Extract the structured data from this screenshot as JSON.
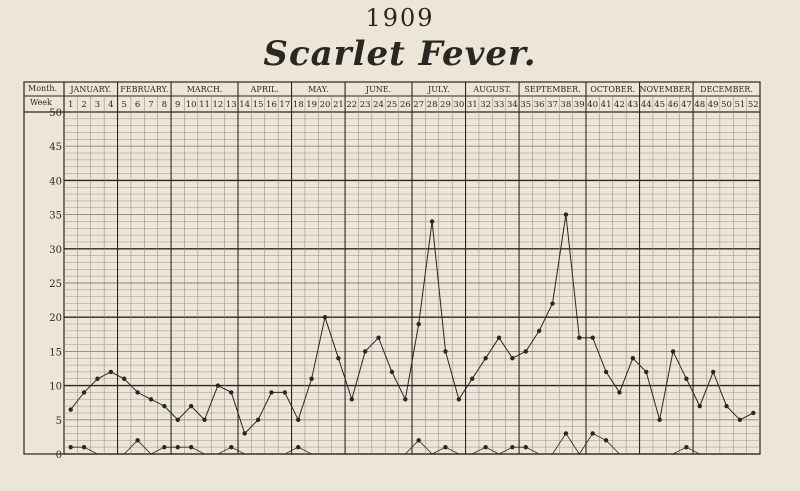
{
  "header": {
    "year": "1909",
    "title": "Scarlet Fever."
  },
  "labels": {
    "month_row": "Month.",
    "week_row": "Week"
  },
  "colors": {
    "paper": "#ece6d8",
    "ink": "#2b2622",
    "grid_minor": "#8a8580",
    "grid_major": "#2b2622"
  },
  "chart_data": {
    "type": "line",
    "title": "Scarlet Fever.",
    "xlabel": "Week",
    "ylabel": "",
    "ylim": [
      0,
      50
    ],
    "yticks": [
      0,
      5,
      10,
      15,
      20,
      25,
      30,
      35,
      40,
      45,
      50
    ],
    "months": [
      {
        "name": "JANUARY.",
        "start_week": 1,
        "end_week": 4
      },
      {
        "name": "FEBRUARY.",
        "start_week": 5,
        "end_week": 8
      },
      {
        "name": "MARCH.",
        "start_week": 9,
        "end_week": 13
      },
      {
        "name": "APRIL.",
        "start_week": 14,
        "end_week": 17
      },
      {
        "name": "MAY.",
        "start_week": 18,
        "end_week": 21
      },
      {
        "name": "JUNE.",
        "start_week": 22,
        "end_week": 26
      },
      {
        "name": "JULY.",
        "start_week": 27,
        "end_week": 30
      },
      {
        "name": "AUGUST.",
        "start_week": 31,
        "end_week": 34
      },
      {
        "name": "SEPTEMBER.",
        "start_week": 35,
        "end_week": 39
      },
      {
        "name": "OCTOBER.",
        "start_week": 40,
        "end_week": 43
      },
      {
        "name": "NOVEMBER.",
        "start_week": 44,
        "end_week": 47
      },
      {
        "name": "DECEMBER.",
        "start_week": 48,
        "end_week": 52
      }
    ],
    "weeks": [
      1,
      2,
      3,
      4,
      5,
      6,
      7,
      8,
      9,
      10,
      11,
      12,
      13,
      14,
      15,
      16,
      17,
      18,
      19,
      20,
      21,
      22,
      23,
      24,
      25,
      26,
      27,
      28,
      29,
      30,
      31,
      32,
      33,
      34,
      35,
      36,
      37,
      38,
      39,
      40,
      41,
      42,
      43,
      44,
      45,
      46,
      47,
      48,
      49,
      50,
      51,
      52
    ],
    "series": [
      {
        "values": [
          6.5,
          9,
          11,
          12,
          11,
          9,
          8,
          7,
          5,
          7,
          5,
          10,
          9,
          3,
          5,
          9,
          9,
          5,
          11,
          20,
          14,
          8,
          15,
          17,
          12,
          8,
          19,
          34,
          15,
          8,
          11,
          14,
          17,
          14,
          15,
          18,
          22,
          35,
          17,
          17,
          12,
          9,
          14,
          12,
          5,
          15,
          11,
          7,
          12,
          7,
          5,
          6
        ]
      },
      {
        "values": [
          1,
          1,
          0,
          0,
          0,
          2,
          0,
          1,
          1,
          1,
          0,
          0,
          1,
          0,
          0,
          0,
          0,
          1,
          0,
          0,
          0,
          0,
          0,
          0,
          0,
          0,
          2,
          0,
          1,
          0,
          0,
          1,
          0,
          1,
          1,
          0,
          0,
          3,
          0,
          3,
          2,
          0,
          0,
          0,
          0,
          0,
          1,
          0,
          0,
          0,
          0,
          0
        ]
      }
    ]
  }
}
